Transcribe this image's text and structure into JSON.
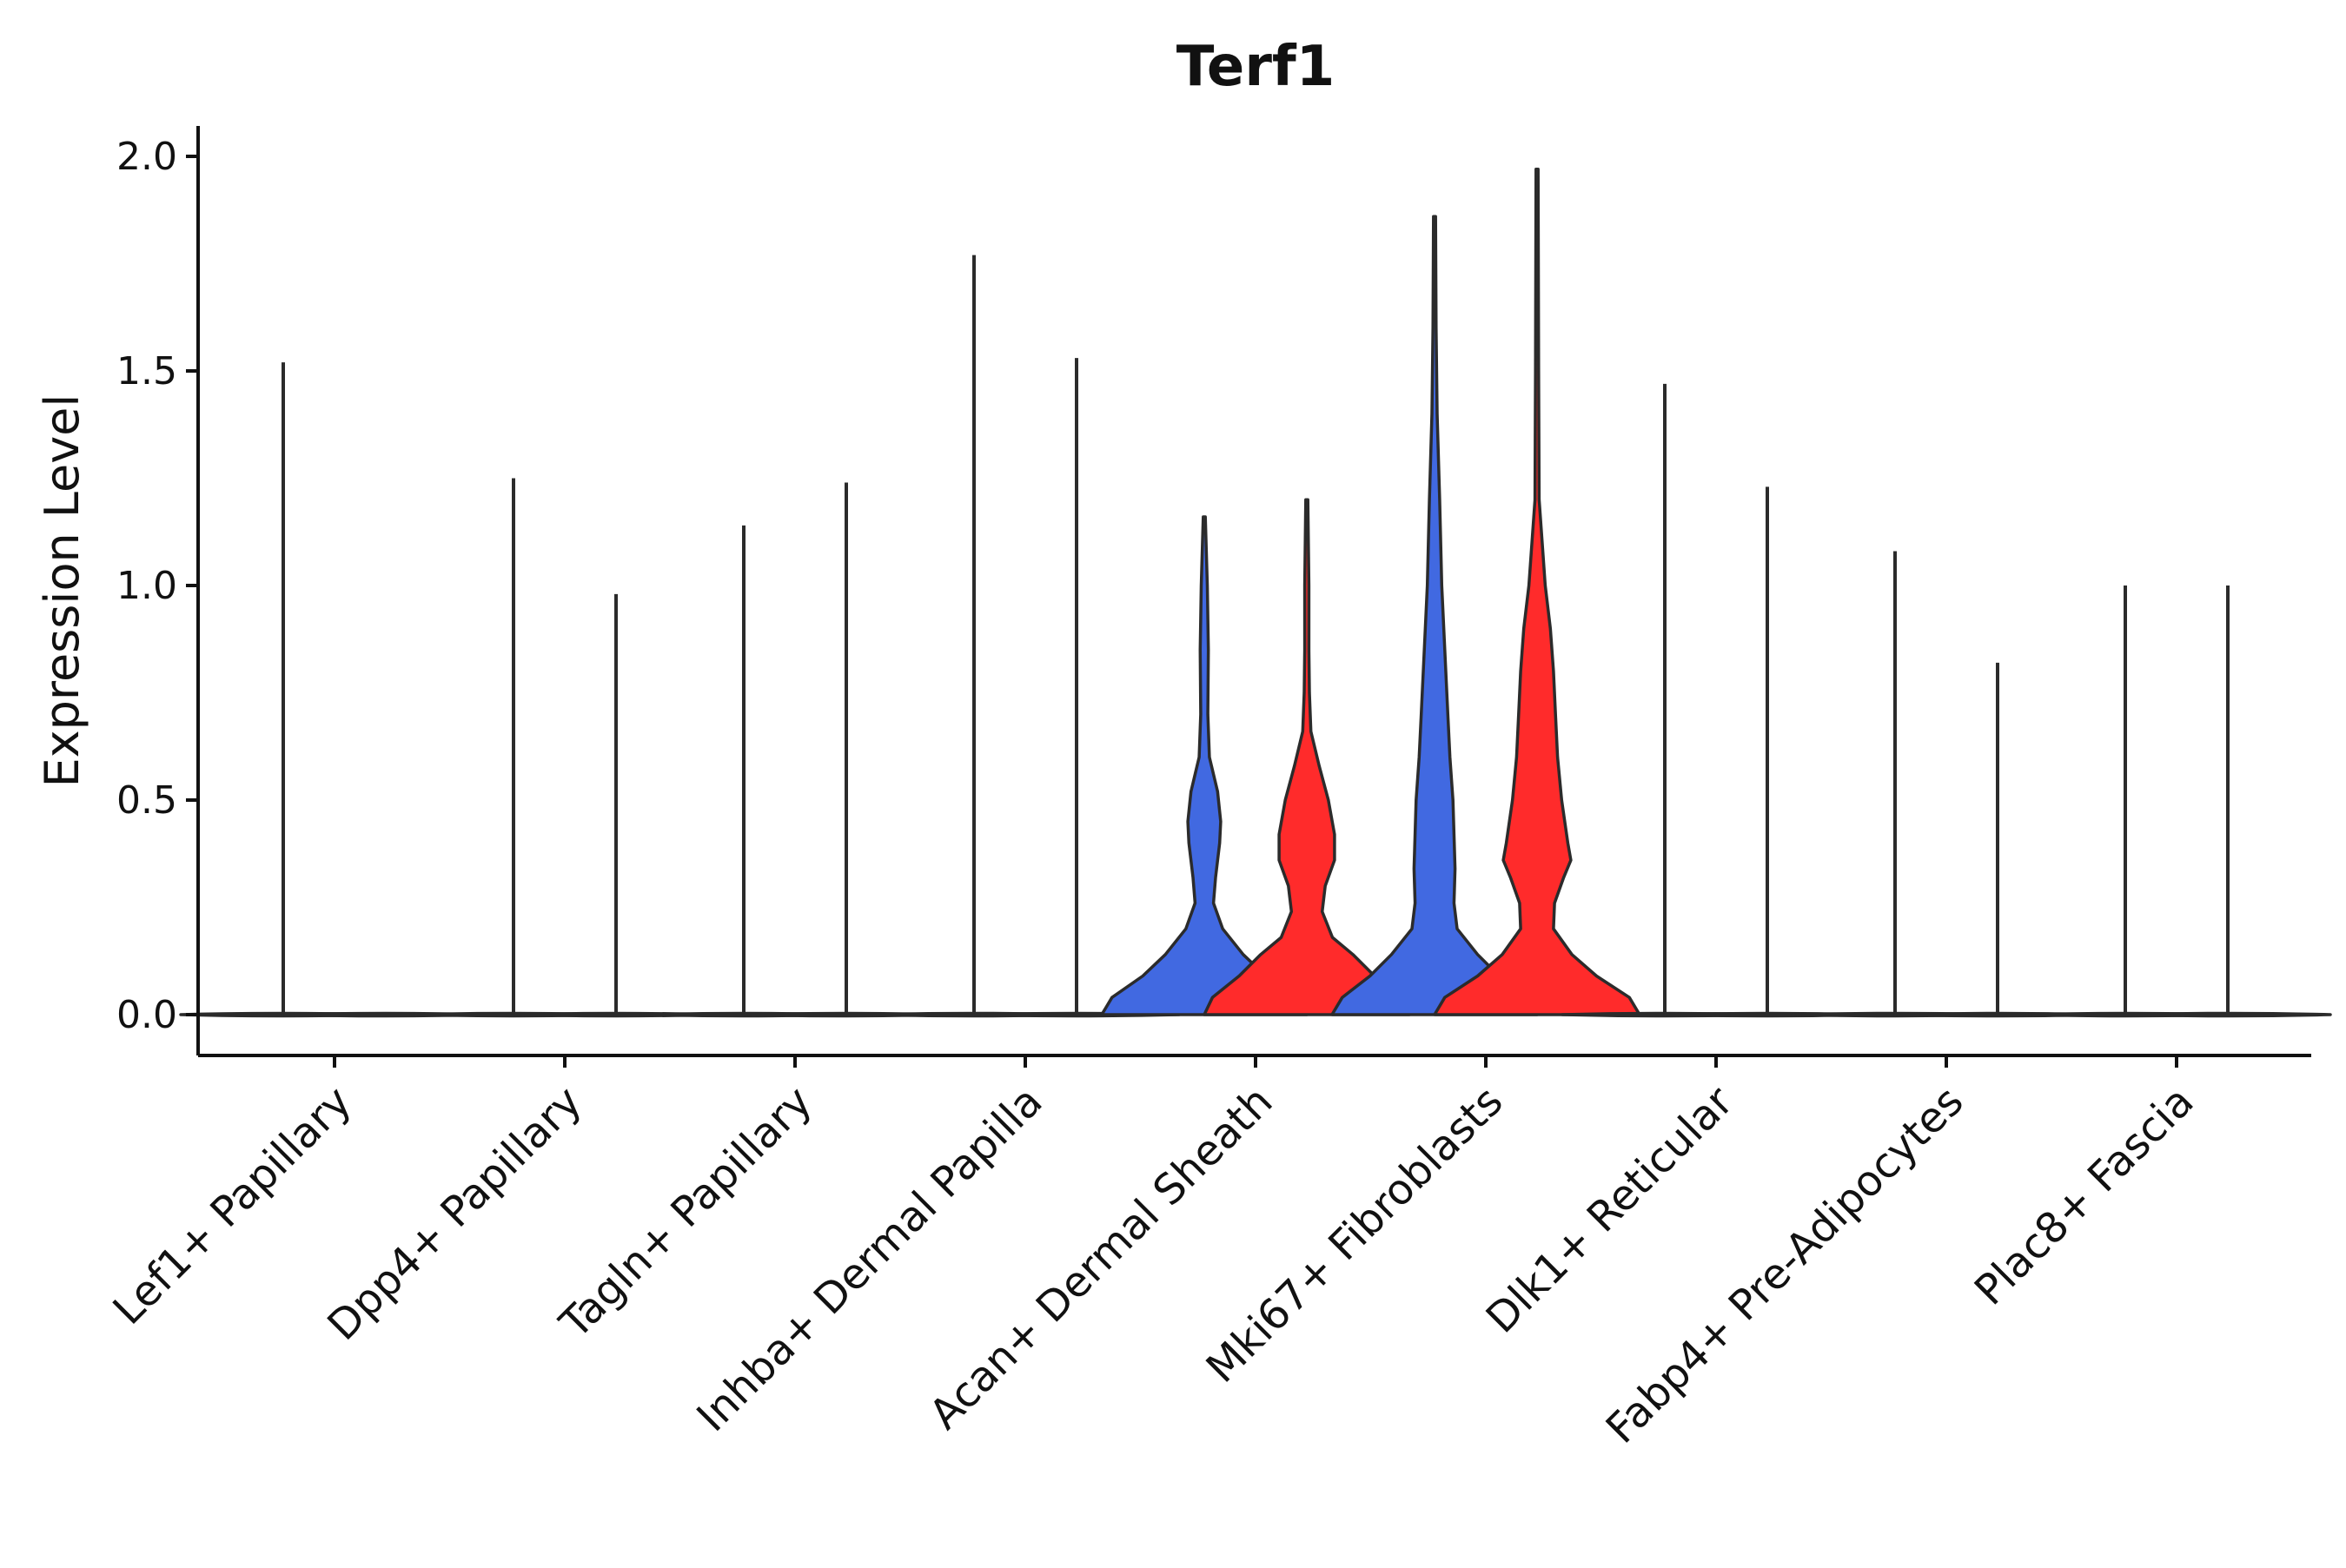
{
  "chart_data": {
    "type": "violin",
    "title": "Terf1",
    "xlabel": "",
    "ylabel": "Expression Level",
    "ylim": [
      -0.1,
      2.08
    ],
    "yticks": [
      0.0,
      0.5,
      1.0,
      1.5,
      2.0
    ],
    "ytick_labels": [
      "0.0",
      "0.5",
      "1.0",
      "1.5",
      "2.0"
    ],
    "series": [
      {
        "name": "group-blue",
        "color": "#4169E1"
      },
      {
        "name": "group-red",
        "color": "#FF2B2B"
      }
    ],
    "categories": [
      {
        "label": "Lef1+ Papillary",
        "violins": [
          {
            "series": 0,
            "max": 1.52,
            "filled": false,
            "profile": [
              [
                0,
                1
              ],
              [
                0.01,
                0.04
              ],
              [
                0.1,
                0.015
              ],
              [
                0.3,
                0.015
              ],
              [
                1.52,
                0.01
              ]
            ]
          },
          {
            "series": 1,
            "max": 0.0,
            "filled": false,
            "profile": [
              [
                0,
                1
              ]
            ]
          }
        ]
      },
      {
        "label": "Dpp4+ Papillary",
        "violins": [
          {
            "series": 0,
            "max": 1.25,
            "filled": false,
            "profile": [
              [
                0,
                1
              ],
              [
                0.01,
                0.03
              ],
              [
                1.25,
                0.01
              ]
            ]
          },
          {
            "series": 1,
            "max": 0.98,
            "filled": false,
            "profile": [
              [
                0,
                1
              ],
              [
                0.01,
                0.03
              ],
              [
                0.98,
                0.01
              ]
            ]
          }
        ]
      },
      {
        "label": "Tagln+ Papillary",
        "violins": [
          {
            "series": 0,
            "max": 1.14,
            "filled": false,
            "profile": [
              [
                0,
                1
              ],
              [
                0.01,
                0.03
              ],
              [
                1.14,
                0.01
              ]
            ]
          },
          {
            "series": 1,
            "max": 1.24,
            "filled": false,
            "profile": [
              [
                0,
                1
              ],
              [
                0.01,
                0.03
              ],
              [
                1.24,
                0.01
              ]
            ]
          }
        ]
      },
      {
        "label": "Inhba+ Dermal Papilla",
        "violins": [
          {
            "series": 0,
            "max": 1.77,
            "filled": false,
            "profile": [
              [
                0,
                1
              ],
              [
                0.01,
                0.03
              ],
              [
                1.77,
                0.01
              ]
            ]
          },
          {
            "series": 1,
            "max": 1.53,
            "filled": false,
            "profile": [
              [
                0,
                1
              ],
              [
                0.01,
                0.03
              ],
              [
                1.53,
                0.01
              ]
            ]
          }
        ]
      },
      {
        "label": "Acan+ Dermal Sheath",
        "violins": [
          {
            "series": 0,
            "max": 1.16,
            "filled": true,
            "profile": [
              [
                0,
                1
              ],
              [
                0.04,
                0.9
              ],
              [
                0.09,
                0.6
              ],
              [
                0.14,
                0.38
              ],
              [
                0.2,
                0.18
              ],
              [
                0.26,
                0.09
              ],
              [
                0.32,
                0.11
              ],
              [
                0.4,
                0.15
              ],
              [
                0.45,
                0.16
              ],
              [
                0.52,
                0.13
              ],
              [
                0.6,
                0.05
              ],
              [
                0.7,
                0.035
              ],
              [
                0.85,
                0.04
              ],
              [
                1.0,
                0.03
              ],
              [
                1.16,
                0.01
              ]
            ]
          },
          {
            "series": 1,
            "max": 1.2,
            "filled": true,
            "profile": [
              [
                0,
                1
              ],
              [
                0.04,
                0.92
              ],
              [
                0.09,
                0.66
              ],
              [
                0.14,
                0.45
              ],
              [
                0.18,
                0.25
              ],
              [
                0.24,
                0.15
              ],
              [
                0.3,
                0.18
              ],
              [
                0.36,
                0.27
              ],
              [
                0.42,
                0.27
              ],
              [
                0.5,
                0.21
              ],
              [
                0.58,
                0.12
              ],
              [
                0.66,
                0.04
              ],
              [
                0.75,
                0.025
              ],
              [
                0.85,
                0.02
              ],
              [
                1.0,
                0.02
              ],
              [
                1.2,
                0.01
              ]
            ]
          }
        ]
      },
      {
        "label": "Mki67+ Fibroblasts",
        "violins": [
          {
            "series": 0,
            "max": 1.86,
            "filled": true,
            "profile": [
              [
                0,
                1
              ],
              [
                0.04,
                0.9
              ],
              [
                0.09,
                0.63
              ],
              [
                0.14,
                0.42
              ],
              [
                0.2,
                0.22
              ],
              [
                0.26,
                0.19
              ],
              [
                0.34,
                0.2
              ],
              [
                0.42,
                0.19
              ],
              [
                0.5,
                0.18
              ],
              [
                0.6,
                0.15
              ],
              [
                0.7,
                0.13
              ],
              [
                0.85,
                0.1
              ],
              [
                1.0,
                0.07
              ],
              [
                1.2,
                0.05
              ],
              [
                1.4,
                0.025
              ],
              [
                1.6,
                0.015
              ],
              [
                1.86,
                0.01
              ]
            ]
          },
          {
            "series": 1,
            "max": 1.97,
            "filled": true,
            "profile": [
              [
                0,
                1
              ],
              [
                0.04,
                0.9
              ],
              [
                0.09,
                0.58
              ],
              [
                0.14,
                0.34
              ],
              [
                0.2,
                0.16
              ],
              [
                0.26,
                0.17
              ],
              [
                0.32,
                0.26
              ],
              [
                0.36,
                0.33
              ],
              [
                0.4,
                0.3
              ],
              [
                0.5,
                0.24
              ],
              [
                0.6,
                0.2
              ],
              [
                0.7,
                0.18
              ],
              [
                0.8,
                0.16
              ],
              [
                0.9,
                0.13
              ],
              [
                1.0,
                0.08
              ],
              [
                1.1,
                0.05
              ],
              [
                1.2,
                0.02
              ],
              [
                1.5,
                0.015
              ],
              [
                1.97,
                0.01
              ]
            ]
          }
        ]
      },
      {
        "label": "Dlk1+ Reticular",
        "violins": [
          {
            "series": 0,
            "max": 1.47,
            "filled": false,
            "profile": [
              [
                0,
                1
              ],
              [
                0.01,
                0.03
              ],
              [
                1.47,
                0.01
              ]
            ]
          },
          {
            "series": 1,
            "max": 1.23,
            "filled": false,
            "profile": [
              [
                0,
                1
              ],
              [
                0.01,
                0.03
              ],
              [
                1.23,
                0.01
              ]
            ]
          }
        ]
      },
      {
        "label": "Fabp4+ Pre-Adipocytes",
        "violins": [
          {
            "series": 0,
            "max": 1.08,
            "filled": false,
            "profile": [
              [
                0,
                1
              ],
              [
                0.01,
                0.03
              ],
              [
                1.08,
                0.01
              ]
            ]
          },
          {
            "series": 1,
            "max": 0.82,
            "filled": false,
            "profile": [
              [
                0,
                1
              ],
              [
                0.01,
                0.03
              ],
              [
                0.82,
                0.01
              ]
            ]
          }
        ]
      },
      {
        "label": "Plac8+ Fascia",
        "violins": [
          {
            "series": 0,
            "max": 1.0,
            "filled": false,
            "profile": [
              [
                0,
                1
              ],
              [
                0.01,
                0.03
              ],
              [
                1.0,
                0.01
              ]
            ]
          },
          {
            "series": 1,
            "max": 1.0,
            "filled": false,
            "profile": [
              [
                0,
                1
              ],
              [
                0.01,
                0.03
              ],
              [
                1.0,
                0.01
              ]
            ]
          }
        ]
      }
    ],
    "legend": "none",
    "grid": false
  }
}
